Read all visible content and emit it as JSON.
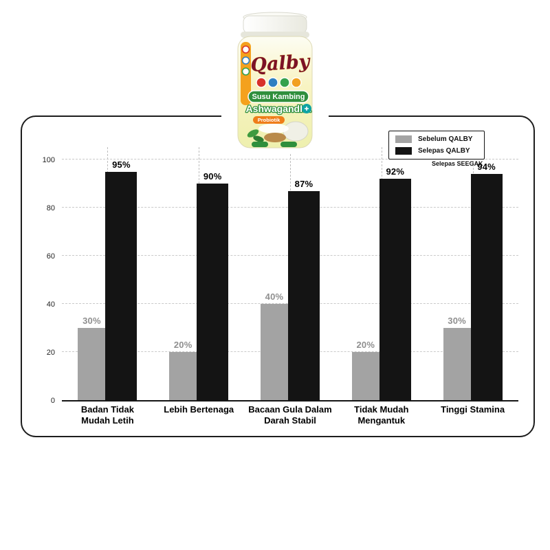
{
  "page": {
    "background": "#ffffff"
  },
  "product": {
    "brand": "Qalby",
    "title_line1": "Susu Kambing",
    "title_line2": "Ashwagandha",
    "badge": "Probiotik"
  },
  "legend": {
    "items": [
      {
        "label": "Sebelum QALBY",
        "color": "#a3a3a3"
      },
      {
        "label": "Selepas QALBY",
        "color": "#141414"
      }
    ],
    "note": "Selepas SEEGAK"
  },
  "chart_data": {
    "type": "bar",
    "title": "",
    "xlabel": "",
    "ylabel": "",
    "categories": [
      "Badan Tidak\nMudah Letih",
      "Lebih Bertenaga",
      "Bacaan Gula Dalam\nDarah Stabil",
      "Tidak Mudah\nMengantuk",
      "Tinggi Stamina"
    ],
    "series": [
      {
        "name": "Sebelum QALBY",
        "color": "#a3a3a3",
        "label_color": "#8f8f8f",
        "values": [
          30,
          20,
          40,
          20,
          30
        ]
      },
      {
        "name": "Selepas QALBY",
        "color": "#141414",
        "label_color": "#000000",
        "values": [
          95,
          90,
          87,
          92,
          94
        ]
      }
    ],
    "value_suffix": "%",
    "yticks": [
      0,
      20,
      40,
      60,
      80,
      100
    ],
    "ylim": [
      0,
      105
    ],
    "grid": true,
    "legend_position": "top-right"
  }
}
